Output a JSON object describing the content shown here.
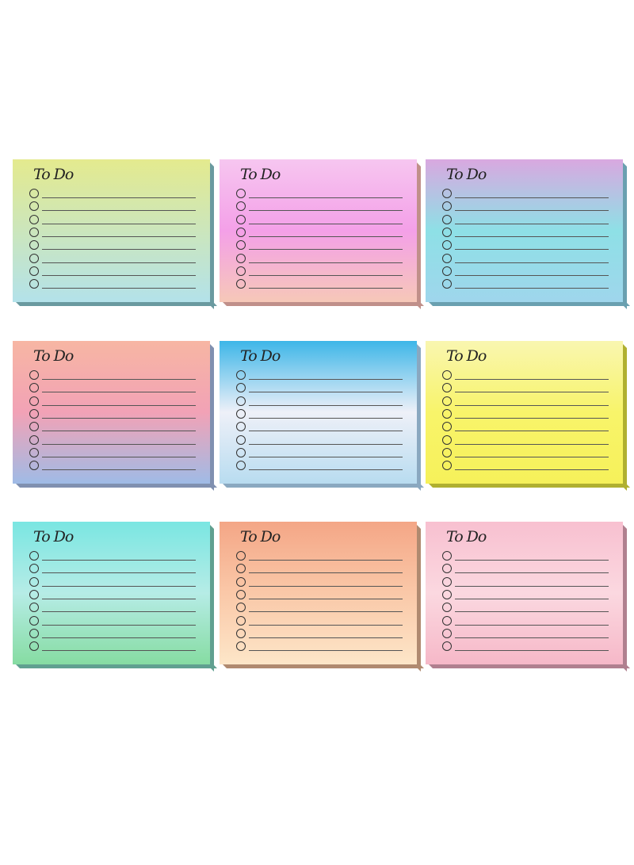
{
  "notes": [
    {
      "title": "To Do",
      "items": 8,
      "colors": [
        "#e4ea8e",
        "#b3e2ea"
      ],
      "edge": "#6a9aa0"
    },
    {
      "title": "To Do",
      "items": 8,
      "colors": [
        "#f6c6f0",
        "#f4a0e8",
        "#f6c8b8"
      ],
      "edge": "#c0908a"
    },
    {
      "title": "To Do",
      "items": 8,
      "colors": [
        "#d9a8e0",
        "#8ee0e6",
        "#9fd6ec"
      ],
      "edge": "#6aa0b0"
    },
    {
      "title": "To Do",
      "items": 8,
      "colors": [
        "#f7b6a3",
        "#f2a2b6",
        "#9fbbe6"
      ],
      "edge": "#8090b0"
    },
    {
      "title": "To Do",
      "items": 8,
      "colors": [
        "#3db6e8",
        "#eef0f8",
        "#b8dcf0"
      ],
      "edge": "#8aa8c0"
    },
    {
      "title": "To Do",
      "items": 8,
      "colors": [
        "#f9f6b0",
        "#f8f46a",
        "#f6f15a"
      ],
      "edge": "#b0b030"
    },
    {
      "title": "To Do",
      "items": 8,
      "colors": [
        "#7ae6e2",
        "#b6ece6",
        "#86dca2"
      ],
      "edge": "#60a090"
    },
    {
      "title": "To Do",
      "items": 8,
      "colors": [
        "#f4a686",
        "#fac8a8",
        "#fde6c8"
      ],
      "edge": "#b08a70"
    },
    {
      "title": "To Do",
      "items": 8,
      "colors": [
        "#f8c0d0",
        "#fbd8e0",
        "#f6b8c8"
      ],
      "edge": "#b0808f"
    }
  ]
}
